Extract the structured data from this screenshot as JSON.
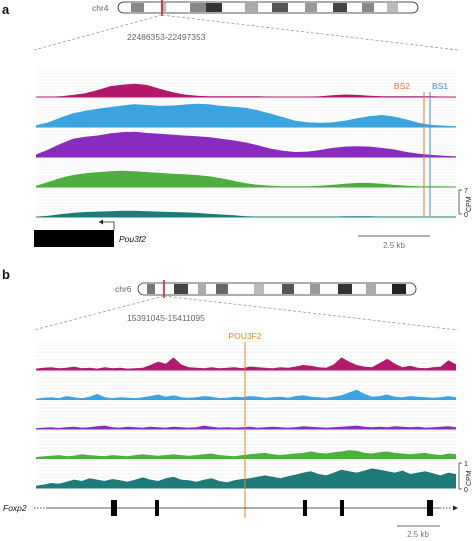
{
  "panel_a": {
    "letter": "a",
    "chromosome": "chr4",
    "coordinates": "22486353-22497353",
    "binding_sites": [
      {
        "label": "BS2",
        "color": "#e8743b"
      },
      {
        "label": "BS1",
        "color": "#3b8fd0"
      }
    ],
    "gene": "Pou3f2",
    "scalebar": "2.5 kb",
    "y_axis_label": "CPM",
    "y_axis_ticks": [
      "7",
      "0"
    ]
  },
  "panel_b": {
    "letter": "b",
    "chromosome": "chr6",
    "coordinates": "15391045-15411095",
    "marker": {
      "label": "POU3F2",
      "color": "#e8861a"
    },
    "gene": "Foxp2",
    "scalebar": "2.5 kb",
    "y_axis_label": "CPM",
    "y_axis_ticks": [
      "1",
      "0"
    ]
  },
  "track_colors": [
    "#b3186c",
    "#3aa3e0",
    "#8a2bbf",
    "#4caf3e",
    "#1f7a7a"
  ],
  "highlight_color": "#e01b24",
  "chart_data": [
    {
      "type": "area",
      "title": "",
      "xlabel": "",
      "ylabel": "CPM",
      "ylim": [
        0,
        7
      ],
      "grid": true,
      "series": [
        {
          "values": [
            0.1,
            0.1,
            0.2,
            0.5,
            0.9,
            1.7,
            2.6,
            3.0,
            3.2,
            2.9,
            2.0,
            1.2,
            0.6,
            0.3,
            0.2,
            0.2,
            0.2,
            0.2,
            0.2,
            0.1,
            0.1,
            0.1,
            0.1,
            0.2,
            0.4,
            0.6,
            0.5,
            0.3,
            0.2,
            0.2,
            0.2,
            0.2,
            0.2,
            0.1,
            0.1
          ]
        },
        {
          "values": [
            0.4,
            1.1,
            2.3,
            3.3,
            3.9,
            4.4,
            4.8,
            5.2,
            5.5,
            5.3,
            5.1,
            5.2,
            5.4,
            5.6,
            5.5,
            5.1,
            4.9,
            4.6,
            4.0,
            3.2,
            2.4,
            1.5,
            1.1,
            1.0,
            1.1,
            1.5,
            2.1,
            2.6,
            2.9,
            2.5,
            1.8,
            1.0,
            0.5,
            0.3,
            0.2
          ]
        },
        {
          "values": [
            0.6,
            1.8,
            3.2,
            4.4,
            4.9,
            5.2,
            5.7,
            6.0,
            6.1,
            5.8,
            5.6,
            5.4,
            5.2,
            5.0,
            4.8,
            4.4,
            4.0,
            3.5,
            2.8,
            2.0,
            1.5,
            1.2,
            1.3,
            1.7,
            2.2,
            2.5,
            2.6,
            2.5,
            2.2,
            1.8,
            1.2,
            0.8,
            0.5,
            0.3,
            0.2
          ]
        },
        {
          "values": [
            0.3,
            1.2,
            2.2,
            2.9,
            3.3,
            3.6,
            3.8,
            3.9,
            3.8,
            3.6,
            3.4,
            3.2,
            3.1,
            2.9,
            2.6,
            2.1,
            1.5,
            0.9,
            0.5,
            0.3,
            0.2,
            0.2,
            0.2,
            0.3,
            0.5,
            0.8,
            1.0,
            1.0,
            0.8,
            0.5,
            0.3,
            0.2,
            0.2,
            0.2,
            0.1
          ]
        },
        {
          "values": [
            0.1,
            0.3,
            0.7,
            1.0,
            1.2,
            1.3,
            1.4,
            1.5,
            1.5,
            1.4,
            1.3,
            1.2,
            1.1,
            1.0,
            0.8,
            0.6,
            0.4,
            0.2,
            0.1,
            0.1,
            0.1,
            0.1,
            0.1,
            0.1,
            0.1,
            0.2,
            0.2,
            0.2,
            0.1,
            0.1,
            0.1,
            0.1,
            0.1,
            0.1,
            0.1
          ]
        }
      ]
    },
    {
      "type": "area",
      "title": "",
      "xlabel": "",
      "ylabel": "CPM",
      "ylim": [
        0,
        1
      ],
      "grid": true,
      "series": [
        {
          "values": [
            0.05,
            0.08,
            0.1,
            0.06,
            0.08,
            0.12,
            0.06,
            0.08,
            0.05,
            0.1,
            0.06,
            0.08,
            0.05,
            0.06,
            0.08,
            0.18,
            0.3,
            0.22,
            0.45,
            0.2,
            0.1,
            0.08,
            0.06,
            0.1,
            0.06,
            0.08,
            0.1,
            0.06,
            0.12,
            0.1,
            0.08,
            0.06,
            0.1,
            0.08,
            0.12,
            0.18,
            0.15,
            0.1,
            0.08,
            0.2,
            0.45,
            0.3,
            0.18,
            0.12,
            0.1,
            0.25,
            0.4,
            0.22,
            0.1,
            0.15,
            0.08,
            0.06,
            0.1,
            0.12,
            0.35,
            0.2
          ]
        },
        {
          "values": [
            0.03,
            0.06,
            0.08,
            0.05,
            0.12,
            0.08,
            0.05,
            0.1,
            0.2,
            0.08,
            0.05,
            0.08,
            0.06,
            0.05,
            0.08,
            0.12,
            0.18,
            0.1,
            0.15,
            0.08,
            0.06,
            0.08,
            0.12,
            0.1,
            0.05,
            0.06,
            0.1,
            0.08,
            0.12,
            0.1,
            0.06,
            0.08,
            0.1,
            0.06,
            0.12,
            0.15,
            0.1,
            0.08,
            0.06,
            0.1,
            0.15,
            0.25,
            0.35,
            0.2,
            0.1,
            0.12,
            0.18,
            0.1,
            0.08,
            0.12,
            0.1,
            0.08,
            0.06,
            0.08,
            0.12,
            0.08
          ]
        },
        {
          "values": [
            0.03,
            0.05,
            0.06,
            0.04,
            0.06,
            0.08,
            0.05,
            0.06,
            0.1,
            0.12,
            0.06,
            0.05,
            0.08,
            0.06,
            0.05,
            0.08,
            0.06,
            0.05,
            0.08,
            0.06,
            0.05,
            0.06,
            0.12,
            0.08,
            0.05,
            0.06,
            0.05,
            0.06,
            0.08,
            0.05,
            0.06,
            0.08,
            0.06,
            0.05,
            0.06,
            0.1,
            0.08,
            0.06,
            0.05,
            0.06,
            0.08,
            0.1,
            0.12,
            0.08,
            0.06,
            0.08,
            0.06,
            0.1,
            0.08,
            0.06,
            0.08,
            0.05,
            0.06,
            0.08,
            0.1,
            0.06
          ]
        },
        {
          "values": [
            0.05,
            0.08,
            0.1,
            0.12,
            0.08,
            0.1,
            0.15,
            0.12,
            0.1,
            0.08,
            0.12,
            0.1,
            0.08,
            0.12,
            0.15,
            0.12,
            0.1,
            0.12,
            0.15,
            0.12,
            0.1,
            0.12,
            0.15,
            0.18,
            0.12,
            0.1,
            0.08,
            0.12,
            0.15,
            0.18,
            0.2,
            0.15,
            0.12,
            0.15,
            0.18,
            0.2,
            0.25,
            0.2,
            0.18,
            0.22,
            0.25,
            0.3,
            0.28,
            0.2,
            0.18,
            0.22,
            0.25,
            0.2,
            0.18,
            0.15,
            0.18,
            0.2,
            0.15,
            0.12,
            0.18,
            0.15
          ]
        },
        {
          "values": [
            0.08,
            0.12,
            0.18,
            0.15,
            0.22,
            0.3,
            0.25,
            0.35,
            0.3,
            0.25,
            0.32,
            0.28,
            0.22,
            0.3,
            0.38,
            0.3,
            0.25,
            0.35,
            0.4,
            0.3,
            0.28,
            0.22,
            0.3,
            0.35,
            0.25,
            0.2,
            0.28,
            0.32,
            0.35,
            0.4,
            0.45,
            0.4,
            0.35,
            0.42,
            0.48,
            0.55,
            0.6,
            0.5,
            0.45,
            0.55,
            0.65,
            0.6,
            0.55,
            0.62,
            0.7,
            0.65,
            0.6,
            0.55,
            0.62,
            0.5,
            0.55,
            0.6,
            0.52,
            0.45,
            0.55,
            0.5
          ]
        }
      ]
    }
  ]
}
